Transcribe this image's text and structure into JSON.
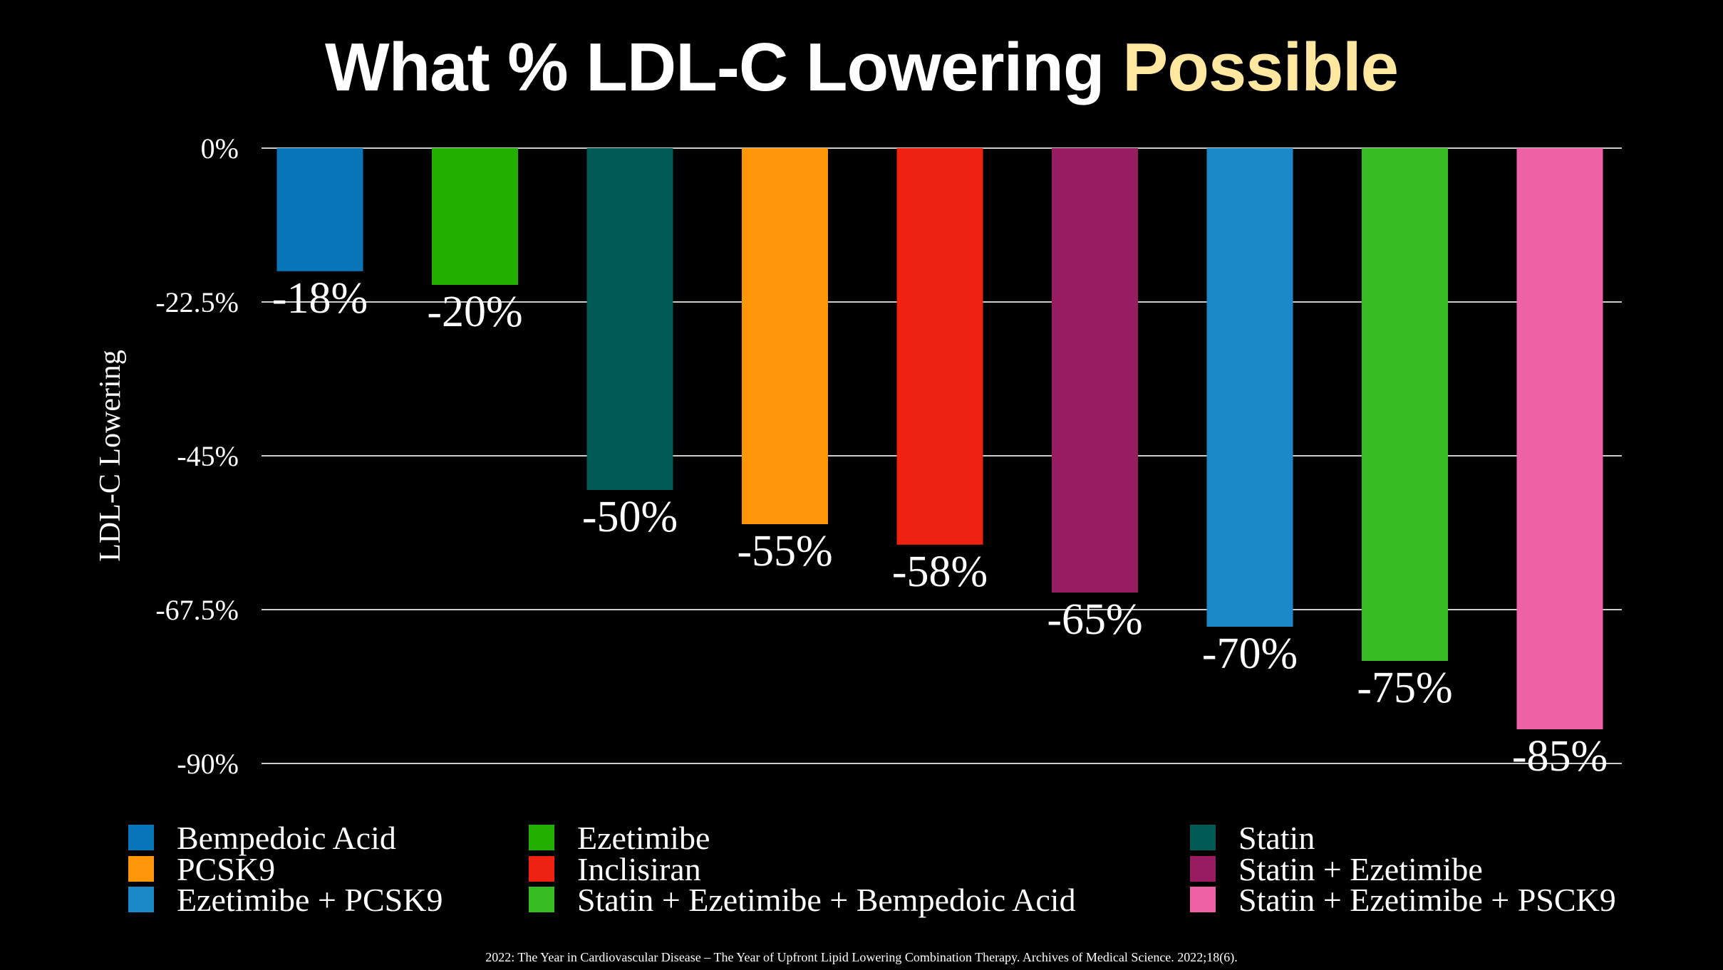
{
  "chart_data": {
    "type": "bar",
    "title": "What % LDL-C Lowering",
    "title_highlight": "Possible",
    "ylabel": "LDL-C Lowering",
    "xlabel": "",
    "ylim": [
      -90,
      0
    ],
    "yticks": [
      0,
      -22.5,
      -45,
      -67.5,
      -90
    ],
    "ytick_labels": [
      "0%",
      "-22.5%",
      "-45%",
      "-67.5%",
      "-90%"
    ],
    "grid": true,
    "legend_position": "bottom",
    "categories": [
      "Bempedoic Acid",
      "Ezetimibe",
      "Statin",
      "PCSK9",
      "Inclisiran",
      "Statin + Ezetimibe",
      "Ezetimibe + PCSK9",
      "Statin + Ezetimibe + Bempedoic Acid",
      "Statin + Ezetimibe + PSCK9"
    ],
    "values": [
      -18,
      -20,
      -50,
      -55,
      -58,
      -65,
      -70,
      -75,
      -85
    ],
    "data_labels": [
      "-18%",
      "-20%",
      "-50%",
      "-55%",
      "-58%",
      "-65%",
      "-70%",
      "-75%",
      "-85%"
    ],
    "colors": [
      "#0776B9",
      "#22B000",
      "#025A55",
      "#FF9509",
      "#EE2211",
      "#981C62",
      "#1B88C8",
      "#36BB22",
      "#EE61A5"
    ]
  },
  "footer": "2022: The Year in Cardiovascular Disease – The Year of Upfront Lipid Lowering Combination Therapy. Archives of Medical Science. 2022;18(6)."
}
